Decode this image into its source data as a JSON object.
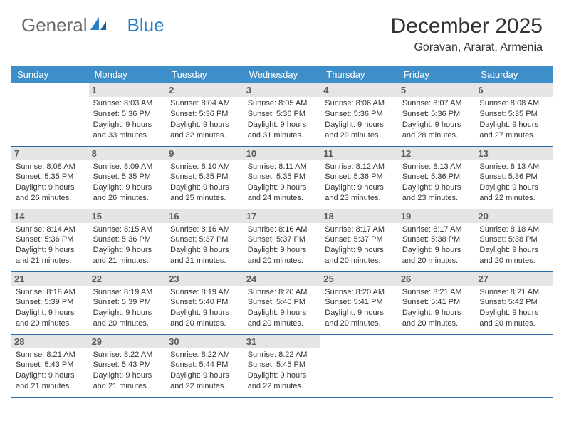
{
  "brand": {
    "part1": "General",
    "part2": "Blue"
  },
  "header": {
    "title": "December 2025",
    "location": "Goravan, Ararat, Armenia"
  },
  "colors": {
    "header_bg": "#3d8ec9",
    "header_text": "#ffffff",
    "daynum_bg": "#e5e5e5",
    "daynum_text": "#5a5a5a",
    "row_border": "#2a6ca8",
    "body_text": "#333333",
    "logo_gray": "#6a6a6a",
    "logo_blue": "#2a7ec4"
  },
  "typography": {
    "title_fontsize": 30,
    "location_fontsize": 16,
    "weekday_fontsize": 13,
    "cell_fontsize": 11
  },
  "weekdays": [
    "Sunday",
    "Monday",
    "Tuesday",
    "Wednesday",
    "Thursday",
    "Friday",
    "Saturday"
  ],
  "days": {
    "d1": {
      "num": "1",
      "sunrise": "8:03 AM",
      "sunset": "5:36 PM",
      "daylight": "9 hours and 33 minutes."
    },
    "d2": {
      "num": "2",
      "sunrise": "8:04 AM",
      "sunset": "5:36 PM",
      "daylight": "9 hours and 32 minutes."
    },
    "d3": {
      "num": "3",
      "sunrise": "8:05 AM",
      "sunset": "5:36 PM",
      "daylight": "9 hours and 31 minutes."
    },
    "d4": {
      "num": "4",
      "sunrise": "8:06 AM",
      "sunset": "5:36 PM",
      "daylight": "9 hours and 29 minutes."
    },
    "d5": {
      "num": "5",
      "sunrise": "8:07 AM",
      "sunset": "5:36 PM",
      "daylight": "9 hours and 28 minutes."
    },
    "d6": {
      "num": "6",
      "sunrise": "8:08 AM",
      "sunset": "5:35 PM",
      "daylight": "9 hours and 27 minutes."
    },
    "d7": {
      "num": "7",
      "sunrise": "8:08 AM",
      "sunset": "5:35 PM",
      "daylight": "9 hours and 26 minutes."
    },
    "d8": {
      "num": "8",
      "sunrise": "8:09 AM",
      "sunset": "5:35 PM",
      "daylight": "9 hours and 26 minutes."
    },
    "d9": {
      "num": "9",
      "sunrise": "8:10 AM",
      "sunset": "5:35 PM",
      "daylight": "9 hours and 25 minutes."
    },
    "d10": {
      "num": "10",
      "sunrise": "8:11 AM",
      "sunset": "5:35 PM",
      "daylight": "9 hours and 24 minutes."
    },
    "d11": {
      "num": "11",
      "sunrise": "8:12 AM",
      "sunset": "5:36 PM",
      "daylight": "9 hours and 23 minutes."
    },
    "d12": {
      "num": "12",
      "sunrise": "8:13 AM",
      "sunset": "5:36 PM",
      "daylight": "9 hours and 23 minutes."
    },
    "d13": {
      "num": "13",
      "sunrise": "8:13 AM",
      "sunset": "5:36 PM",
      "daylight": "9 hours and 22 minutes."
    },
    "d14": {
      "num": "14",
      "sunrise": "8:14 AM",
      "sunset": "5:36 PM",
      "daylight": "9 hours and 21 minutes."
    },
    "d15": {
      "num": "15",
      "sunrise": "8:15 AM",
      "sunset": "5:36 PM",
      "daylight": "9 hours and 21 minutes."
    },
    "d16": {
      "num": "16",
      "sunrise": "8:16 AM",
      "sunset": "5:37 PM",
      "daylight": "9 hours and 21 minutes."
    },
    "d17": {
      "num": "17",
      "sunrise": "8:16 AM",
      "sunset": "5:37 PM",
      "daylight": "9 hours and 20 minutes."
    },
    "d18": {
      "num": "18",
      "sunrise": "8:17 AM",
      "sunset": "5:37 PM",
      "daylight": "9 hours and 20 minutes."
    },
    "d19": {
      "num": "19",
      "sunrise": "8:17 AM",
      "sunset": "5:38 PM",
      "daylight": "9 hours and 20 minutes."
    },
    "d20": {
      "num": "20",
      "sunrise": "8:18 AM",
      "sunset": "5:38 PM",
      "daylight": "9 hours and 20 minutes."
    },
    "d21": {
      "num": "21",
      "sunrise": "8:18 AM",
      "sunset": "5:39 PM",
      "daylight": "9 hours and 20 minutes."
    },
    "d22": {
      "num": "22",
      "sunrise": "8:19 AM",
      "sunset": "5:39 PM",
      "daylight": "9 hours and 20 minutes."
    },
    "d23": {
      "num": "23",
      "sunrise": "8:19 AM",
      "sunset": "5:40 PM",
      "daylight": "9 hours and 20 minutes."
    },
    "d24": {
      "num": "24",
      "sunrise": "8:20 AM",
      "sunset": "5:40 PM",
      "daylight": "9 hours and 20 minutes."
    },
    "d25": {
      "num": "25",
      "sunrise": "8:20 AM",
      "sunset": "5:41 PM",
      "daylight": "9 hours and 20 minutes."
    },
    "d26": {
      "num": "26",
      "sunrise": "8:21 AM",
      "sunset": "5:41 PM",
      "daylight": "9 hours and 20 minutes."
    },
    "d27": {
      "num": "27",
      "sunrise": "8:21 AM",
      "sunset": "5:42 PM",
      "daylight": "9 hours and 20 minutes."
    },
    "d28": {
      "num": "28",
      "sunrise": "8:21 AM",
      "sunset": "5:43 PM",
      "daylight": "9 hours and 21 minutes."
    },
    "d29": {
      "num": "29",
      "sunrise": "8:22 AM",
      "sunset": "5:43 PM",
      "daylight": "9 hours and 21 minutes."
    },
    "d30": {
      "num": "30",
      "sunrise": "8:22 AM",
      "sunset": "5:44 PM",
      "daylight": "9 hours and 22 minutes."
    },
    "d31": {
      "num": "31",
      "sunrise": "8:22 AM",
      "sunset": "5:45 PM",
      "daylight": "9 hours and 22 minutes."
    }
  },
  "labels": {
    "sunrise": "Sunrise: ",
    "sunset": "Sunset: ",
    "daylight": "Daylight: "
  },
  "grid": {
    "start_weekday_index": 1,
    "days_in_month": 31,
    "columns": 7
  }
}
